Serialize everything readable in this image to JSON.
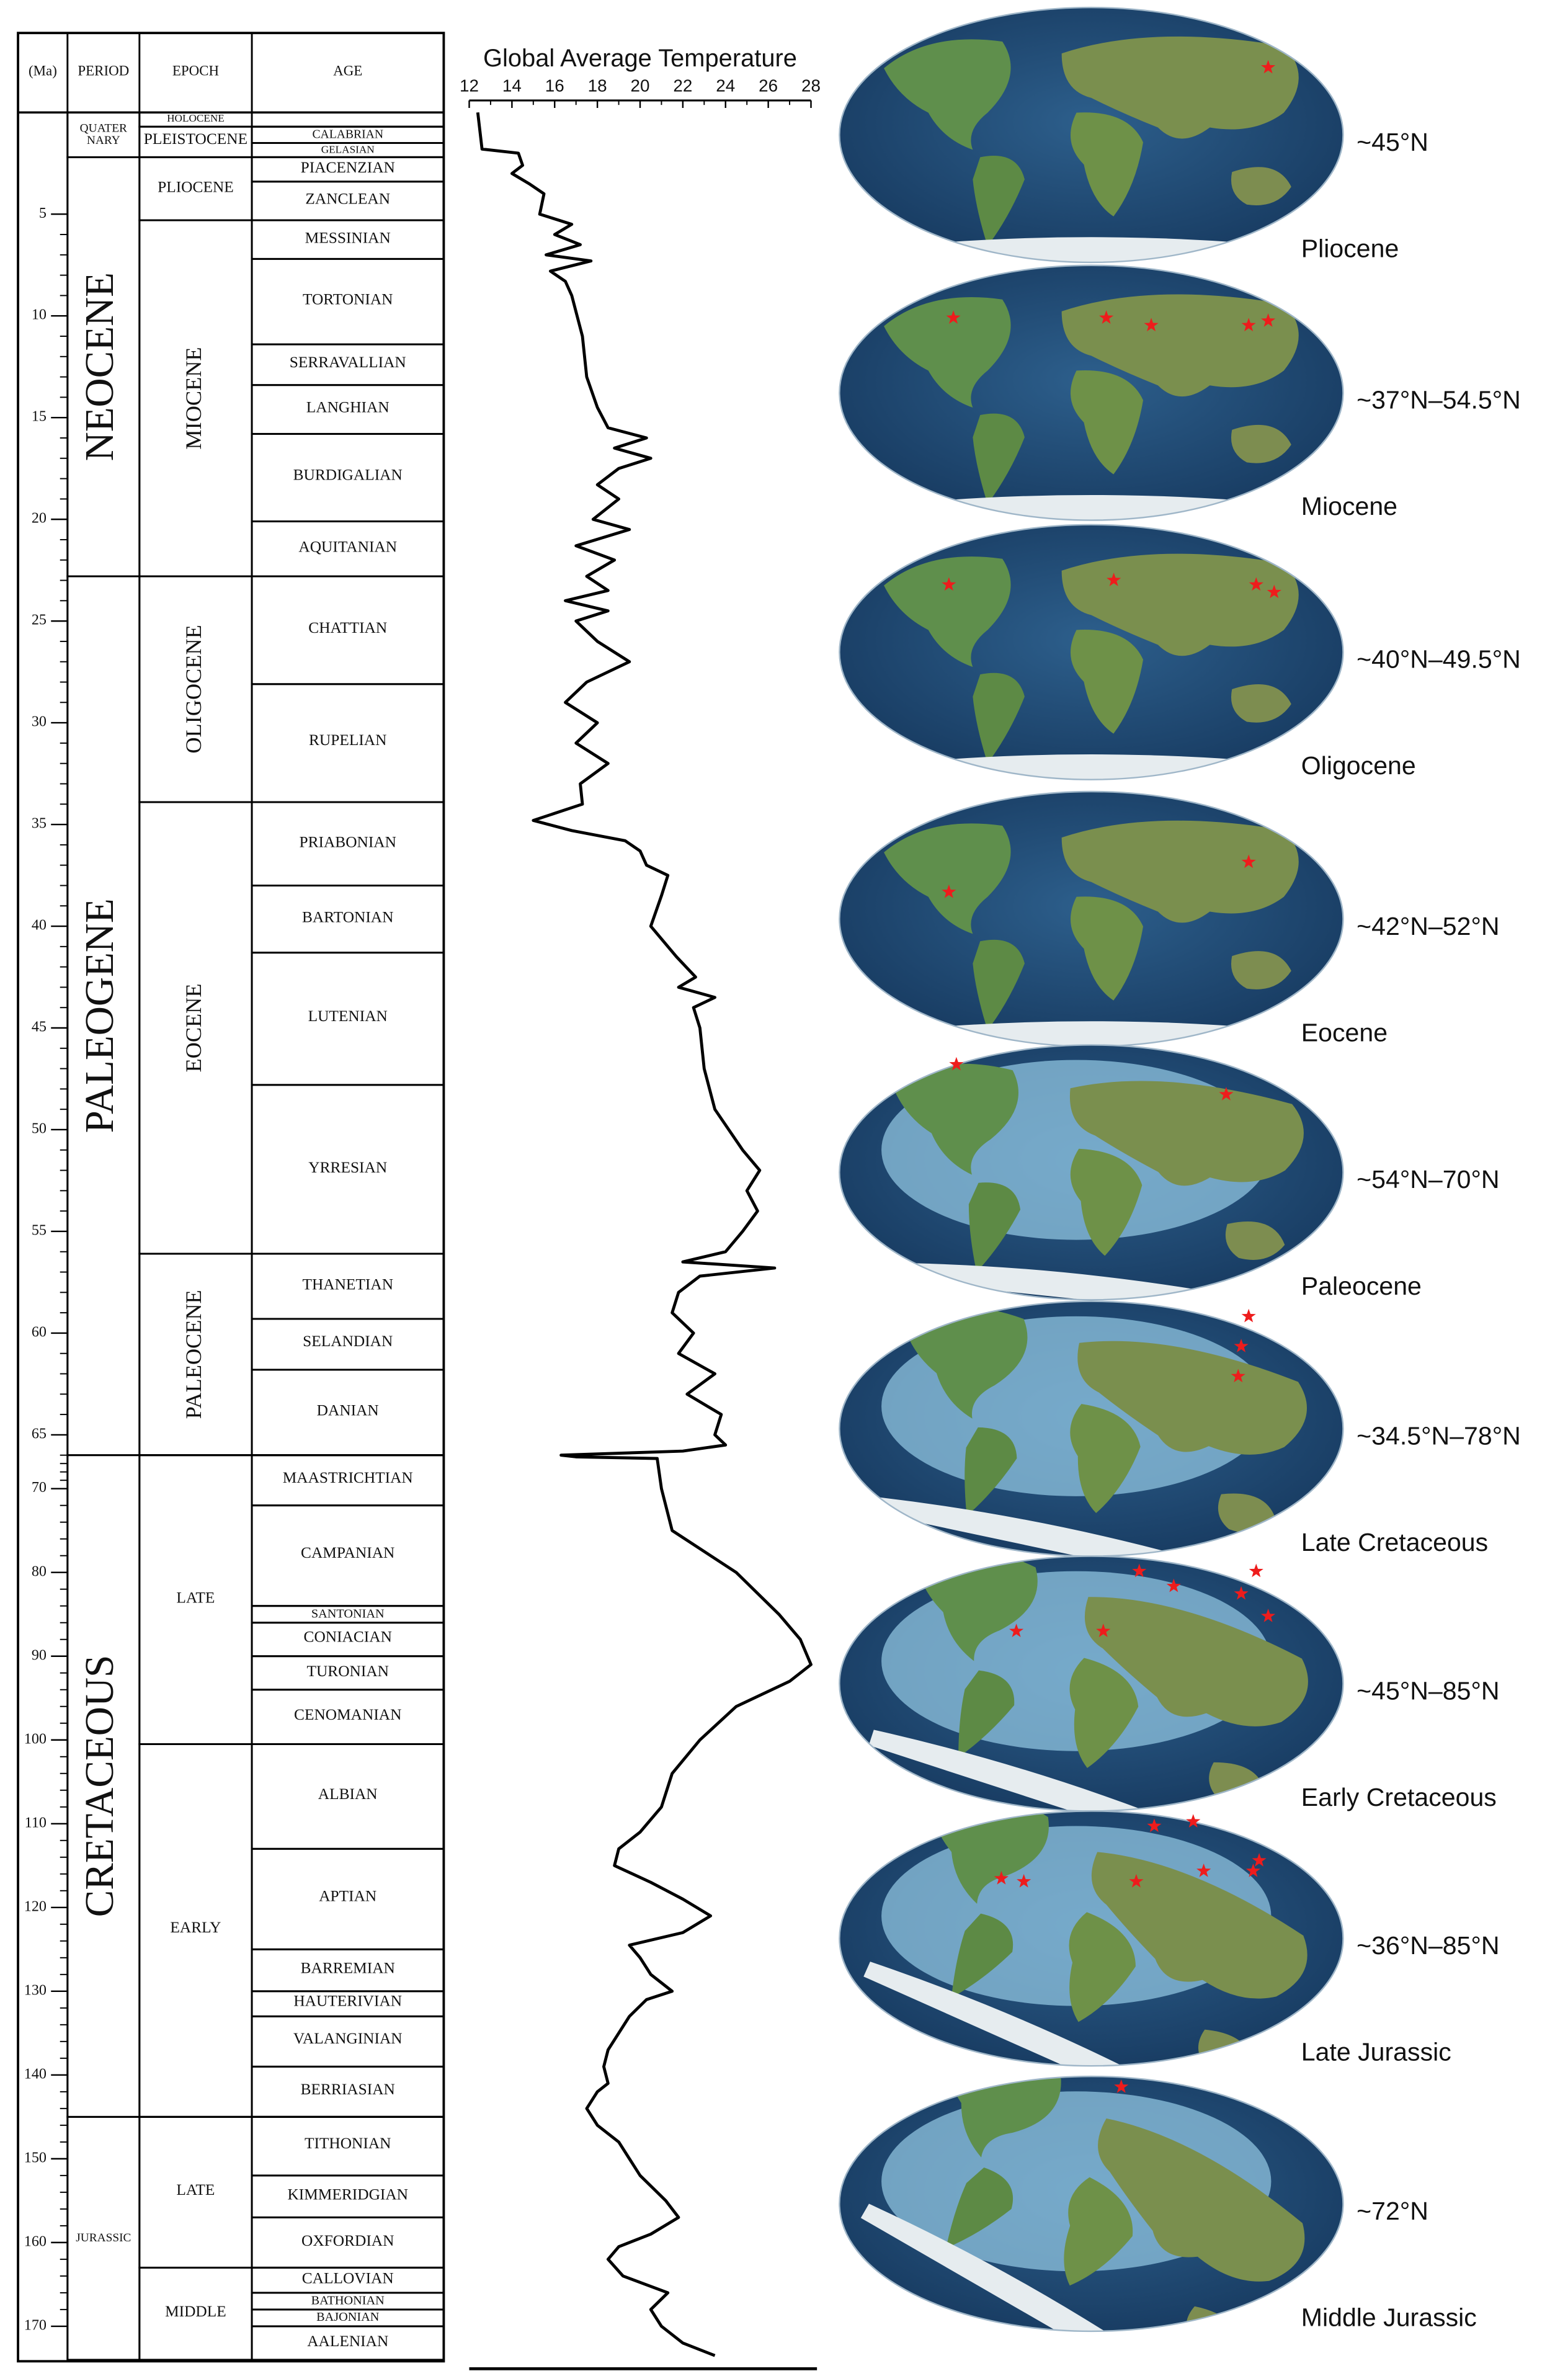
{
  "header": {
    "ma": "(Ma)",
    "period": "PERIOD",
    "epoch": "EPOCH",
    "age": "AGE"
  },
  "ma_ticks": [
    5,
    10,
    15,
    20,
    25,
    30,
    35,
    40,
    45,
    50,
    55,
    60,
    65,
    70,
    80,
    90,
    100,
    110,
    120,
    130,
    140,
    150,
    160,
    170
  ],
  "periods": [
    {
      "label": "QUATER NARY",
      "start": 0,
      "end": 2.2
    },
    {
      "label": "NEOCENE",
      "start": 2.2,
      "end": 22.8,
      "vertical": true
    },
    {
      "label": "PALEOGENE",
      "start": 22.8,
      "end": 66,
      "vertical": true
    },
    {
      "label": "CRETACEOUS",
      "start": 66,
      "end": 145,
      "vertical": true
    },
    {
      "label": "JURASSIC",
      "start": 145,
      "end": 174
    }
  ],
  "epochs": [
    {
      "label": "HOLOCENE",
      "start": 0,
      "end": 0.7
    },
    {
      "label": "PLEISTOCENE",
      "start": 0.7,
      "end": 2.2
    },
    {
      "label": "PLIOCENE",
      "start": 2.2,
      "end": 5.3
    },
    {
      "label": "MIOCENE",
      "start": 5.3,
      "end": 22.8,
      "vertical": true
    },
    {
      "label": "OLIGOCENE",
      "start": 22.8,
      "end": 33.9,
      "vertical": true
    },
    {
      "label": "EOCENE",
      "start": 33.9,
      "end": 56.1,
      "vertical": true
    },
    {
      "label": "PALEOCENE",
      "start": 56.1,
      "end": 66,
      "vertical": true
    },
    {
      "label": "LATE",
      "start": 66,
      "end": 100.5
    },
    {
      "label": "EARLY",
      "start": 100.5,
      "end": 145
    },
    {
      "label": "LATE",
      "start": 145,
      "end": 163
    },
    {
      "label": "MIDDLE",
      "start": 163,
      "end": 174
    }
  ],
  "ages": [
    {
      "label": "CALABRIAN",
      "start": 0.7,
      "end": 1.5
    },
    {
      "label": "GELASIAN",
      "start": 1.5,
      "end": 2.2
    },
    {
      "label": "PIACENZIAN",
      "start": 2.2,
      "end": 3.4
    },
    {
      "label": "ZANCLEAN",
      "start": 3.4,
      "end": 5.3
    },
    {
      "label": "MESSINIAN",
      "start": 5.3,
      "end": 7.2
    },
    {
      "label": "TORTONIAN",
      "start": 7.2,
      "end": 11.4
    },
    {
      "label": "SERRAVALLIAN",
      "start": 11.4,
      "end": 13.4
    },
    {
      "label": "LANGHIAN",
      "start": 13.4,
      "end": 15.8
    },
    {
      "label": "BURDIGALIAN",
      "start": 15.8,
      "end": 20.1
    },
    {
      "label": "AQUITANIAN",
      "start": 20.1,
      "end": 22.8
    },
    {
      "label": "CHATTIAN",
      "start": 22.8,
      "end": 28.1
    },
    {
      "label": "RUPELIAN",
      "start": 28.1,
      "end": 33.9
    },
    {
      "label": "PRIABONIAN",
      "start": 33.9,
      "end": 38
    },
    {
      "label": "BARTONIAN",
      "start": 38,
      "end": 41.3
    },
    {
      "label": "LUTENIAN",
      "start": 41.3,
      "end": 47.8
    },
    {
      "label": "YRRESIAN",
      "start": 47.8,
      "end": 56.1
    },
    {
      "label": "THANETIAN",
      "start": 56.1,
      "end": 59.3
    },
    {
      "label": "SELANDIAN",
      "start": 59.3,
      "end": 61.8
    },
    {
      "label": "DANIAN",
      "start": 61.8,
      "end": 66
    },
    {
      "label": "MAASTRICHTIAN",
      "start": 66,
      "end": 72
    },
    {
      "label": "CAMPANIAN",
      "start": 72,
      "end": 84
    },
    {
      "label": "SANTONIAN",
      "start": 84,
      "end": 86
    },
    {
      "label": "CONIACIAN",
      "start": 86,
      "end": 90
    },
    {
      "label": "TURONIAN",
      "start": 90,
      "end": 94
    },
    {
      "label": "CENOMANIAN",
      "start": 94,
      "end": 100.5
    },
    {
      "label": "ALBIAN",
      "start": 100.5,
      "end": 113
    },
    {
      "label": "APTIAN",
      "start": 113,
      "end": 125
    },
    {
      "label": "BARREMIAN",
      "start": 125,
      "end": 130
    },
    {
      "label": "HAUTERIVIAN",
      "start": 130,
      "end": 133
    },
    {
      "label": "VALANGINIAN",
      "start": 133,
      "end": 139
    },
    {
      "label": "BERRIASIAN",
      "start": 139,
      "end": 145
    },
    {
      "label": "TITHONIAN",
      "start": 145,
      "end": 152
    },
    {
      "label": "KIMMERIDGIAN",
      "start": 152,
      "end": 157
    },
    {
      "label": "OXFORDIAN",
      "start": 157,
      "end": 163
    },
    {
      "label": "CALLOVIAN",
      "start": 163,
      "end": 166
    },
    {
      "label": "BATHONIAN",
      "start": 166,
      "end": 168
    },
    {
      "label": "BAJONIAN",
      "start": 168,
      "end": 170
    },
    {
      "label": "AALENIAN",
      "start": 170,
      "end": 174
    }
  ],
  "chart_data": {
    "type": "line",
    "title": "Global Average Temperature",
    "xlim": [
      12,
      28
    ],
    "xticks": [
      12,
      14,
      16,
      18,
      20,
      22,
      24,
      26,
      28
    ],
    "color": "#000000",
    "ma": [
      0,
      1.8,
      2,
      2.6,
      3,
      3.5,
      4,
      5,
      5.5,
      6,
      6.5,
      7,
      7.3,
      7.8,
      8.3,
      9,
      11,
      13,
      14.5,
      15.5,
      16,
      16.5,
      17,
      17.5,
      18.3,
      19,
      20,
      20.5,
      21.3,
      22,
      22.8,
      23.5,
      24,
      24.5,
      25,
      26,
      27,
      28,
      29,
      30,
      31,
      32,
      33,
      34,
      34.8,
      35.3,
      35.8,
      36.3,
      37,
      37.5,
      38.5,
      40,
      41.5,
      42.5,
      43,
      43.5,
      44,
      45,
      47,
      49,
      51,
      52,
      53,
      54,
      55,
      56,
      56.5,
      56.8,
      57.2,
      58,
      59,
      60,
      61,
      62,
      63,
      64,
      65,
      65.5,
      65.8,
      66,
      66.2,
      66.4,
      70,
      75,
      80,
      85,
      88,
      91,
      93,
      96,
      100,
      104,
      108,
      111,
      113,
      115,
      117,
      119,
      121,
      123,
      124.5,
      126,
      128,
      130,
      131,
      133,
      135,
      137,
      139,
      141,
      142,
      144,
      146,
      148,
      152,
      155,
      157,
      159,
      160.5,
      162,
      164,
      166,
      168,
      170,
      172,
      173.5
    ],
    "values": [
      12.4,
      12.6,
      14.3,
      14.5,
      14.0,
      14.8,
      15.5,
      15.3,
      16.8,
      16.0,
      17.2,
      15.6,
      17.7,
      15.8,
      16.5,
      16.8,
      17.3,
      17.5,
      18.0,
      18.5,
      20.3,
      18.8,
      20.5,
      19.0,
      18.0,
      19.0,
      17.8,
      19.5,
      17.0,
      18.8,
      17.5,
      18.5,
      16.5,
      18.5,
      17.0,
      18.0,
      19.5,
      17.5,
      16.5,
      18.0,
      17.0,
      18.5,
      17.2,
      17.3,
      15.0,
      16.8,
      19.3,
      20.0,
      20.3,
      21.3,
      21.0,
      20.5,
      21.7,
      22.6,
      21.8,
      23.5,
      22.5,
      22.8,
      23.0,
      23.5,
      24.8,
      25.6,
      25.0,
      25.5,
      24.8,
      24.0,
      22.0,
      26.3,
      22.8,
      21.8,
      21.5,
      22.5,
      21.8,
      23.5,
      22.2,
      23.8,
      23.5,
      24.0,
      22.0,
      16.3,
      17.0,
      20.8,
      21.0,
      21.5,
      24.5,
      26.5,
      27.5,
      28.0,
      27.0,
      24.5,
      22.8,
      21.5,
      21.0,
      20.0,
      19.0,
      18.8,
      20.5,
      22.0,
      23.3,
      22.0,
      19.5,
      20.0,
      20.5,
      21.5,
      20.3,
      19.5,
      19.0,
      18.5,
      18.3,
      18.5,
      18.0,
      17.5,
      18.0,
      19.0,
      20.0,
      21.2,
      21.8,
      20.5,
      19.0,
      18.5,
      19.2,
      21.3,
      20.5,
      21.0,
      22.0,
      23.5
    ]
  },
  "maps": [
    {
      "latitude": "~45°N",
      "epoch": "Pliocene"
    },
    {
      "latitude": "~37°N–54.5°N",
      "epoch": "Miocene"
    },
    {
      "latitude": "~40°N–49.5°N",
      "epoch": "Oligocene"
    },
    {
      "latitude": "~42°N–52°N",
      "epoch": "Eocene"
    },
    {
      "latitude": "~54°N–70°N",
      "epoch": "Paleocene"
    },
    {
      "latitude": "~34.5°N–78°N",
      "epoch": "Late Cretaceous"
    },
    {
      "latitude": "~45°N–85°N",
      "epoch": "Early Cretaceous"
    },
    {
      "latitude": "~36°N–85°N",
      "epoch": "Late Jurassic"
    },
    {
      "latitude": "~72°N",
      "epoch": "Middle Jurassic"
    }
  ]
}
